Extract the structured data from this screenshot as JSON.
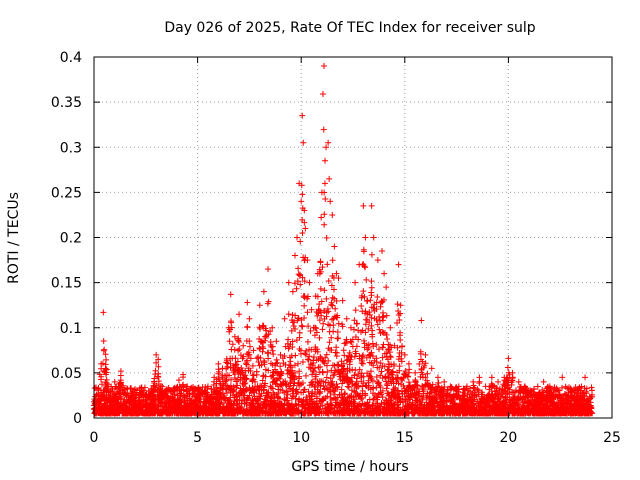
{
  "chart_data": {
    "type": "scatter",
    "title": "Day 026 of 2025, Rate Of TEC Index for receiver sulp",
    "xlabel": "GPS time / hours",
    "ylabel": "ROTI / TECUs",
    "xlim": [
      0,
      25
    ],
    "ylim": [
      0,
      0.4
    ],
    "x_ticks": [
      "0",
      "5",
      "10",
      "15",
      "20",
      "25"
    ],
    "y_ticks": [
      "0",
      "0.05",
      "0.1",
      "0.15",
      "0.2",
      "0.25",
      "0.3",
      "0.35",
      "0.4"
    ],
    "grid": true,
    "marker": "+",
    "color": "#ff0000",
    "series": [
      {
        "points": [
          [
            0.0,
            0.018
          ],
          [
            0.2,
            0.032
          ],
          [
            0.4,
            0.025
          ],
          [
            0.45,
            0.117
          ],
          [
            0.6,
            0.03
          ],
          [
            0.8,
            0.022
          ],
          [
            1.0,
            0.04
          ],
          [
            1.2,
            0.035
          ],
          [
            1.3,
            0.052
          ],
          [
            1.5,
            0.028
          ],
          [
            1.8,
            0.02
          ],
          [
            2.0,
            0.025
          ],
          [
            2.3,
            0.018
          ],
          [
            2.6,
            0.022
          ],
          [
            3.0,
            0.07
          ],
          [
            3.1,
            0.065
          ],
          [
            3.3,
            0.025
          ],
          [
            3.6,
            0.02
          ],
          [
            3.9,
            0.03
          ],
          [
            4.1,
            0.042
          ],
          [
            4.3,
            0.048
          ],
          [
            4.5,
            0.035
          ],
          [
            5.0,
            0.03
          ],
          [
            5.5,
            0.035
          ],
          [
            5.8,
            0.045
          ],
          [
            6.0,
            0.06
          ],
          [
            6.2,
            0.055
          ],
          [
            6.5,
            0.1
          ],
          [
            6.6,
            0.137
          ],
          [
            6.8,
            0.09
          ],
          [
            7.0,
            0.115
          ],
          [
            7.2,
            0.08
          ],
          [
            7.4,
            0.128
          ],
          [
            7.5,
            0.11
          ],
          [
            7.7,
            0.075
          ],
          [
            8.0,
            0.125
          ],
          [
            8.2,
            0.14
          ],
          [
            8.4,
            0.165
          ],
          [
            8.6,
            0.1
          ],
          [
            8.8,
            0.085
          ],
          [
            9.0,
            0.07
          ],
          [
            9.2,
            0.11
          ],
          [
            9.4,
            0.15
          ],
          [
            9.6,
            0.14
          ],
          [
            9.7,
            0.18
          ],
          [
            9.8,
            0.2
          ],
          [
            9.9,
            0.26
          ],
          [
            10.0,
            0.24
          ],
          [
            10.05,
            0.335
          ],
          [
            10.1,
            0.305
          ],
          [
            10.15,
            0.23
          ],
          [
            10.2,
            0.21
          ],
          [
            10.3,
            0.175
          ],
          [
            10.4,
            0.15
          ],
          [
            10.5,
            0.12
          ],
          [
            10.6,
            0.1
          ],
          [
            10.7,
            0.135
          ],
          [
            10.8,
            0.16
          ],
          [
            10.9,
            0.16
          ],
          [
            11.0,
            0.25
          ],
          [
            11.05,
            0.359
          ],
          [
            11.1,
            0.39
          ],
          [
            11.15,
            0.285
          ],
          [
            11.2,
            0.3
          ],
          [
            11.3,
            0.305
          ],
          [
            11.35,
            0.265
          ],
          [
            11.4,
            0.24
          ],
          [
            11.5,
            0.225
          ],
          [
            11.6,
            0.19
          ],
          [
            11.7,
            0.16
          ],
          [
            11.8,
            0.155
          ],
          [
            12.0,
            0.13
          ],
          [
            12.2,
            0.11
          ],
          [
            12.4,
            0.1
          ],
          [
            12.6,
            0.15
          ],
          [
            12.8,
            0.17
          ],
          [
            13.0,
            0.235
          ],
          [
            13.1,
            0.2
          ],
          [
            13.2,
            0.13
          ],
          [
            13.4,
            0.235
          ],
          [
            13.5,
            0.2
          ],
          [
            13.7,
            0.175
          ],
          [
            13.9,
            0.185
          ],
          [
            14.0,
            0.16
          ],
          [
            14.1,
            0.145
          ],
          [
            14.3,
            0.1
          ],
          [
            14.5,
            0.08
          ],
          [
            14.7,
            0.17
          ],
          [
            14.8,
            0.125
          ],
          [
            15.0,
            0.07
          ],
          [
            15.2,
            0.06
          ],
          [
            15.5,
            0.05
          ],
          [
            15.8,
            0.108
          ],
          [
            16.0,
            0.07
          ],
          [
            16.3,
            0.055
          ],
          [
            16.6,
            0.045
          ],
          [
            16.9,
            0.04
          ],
          [
            17.2,
            0.035
          ],
          [
            17.5,
            0.03
          ],
          [
            17.8,
            0.028
          ],
          [
            18.0,
            0.035
          ],
          [
            18.3,
            0.04
          ],
          [
            18.6,
            0.045
          ],
          [
            18.9,
            0.035
          ],
          [
            19.2,
            0.045
          ],
          [
            19.5,
            0.04
          ],
          [
            19.8,
            0.045
          ],
          [
            20.0,
            0.066
          ],
          [
            20.2,
            0.05
          ],
          [
            20.5,
            0.04
          ],
          [
            20.8,
            0.035
          ],
          [
            21.1,
            0.03
          ],
          [
            21.4,
            0.025
          ],
          [
            21.7,
            0.04
          ],
          [
            22.0,
            0.035
          ],
          [
            22.3,
            0.03
          ],
          [
            22.6,
            0.045
          ],
          [
            22.9,
            0.028
          ],
          [
            23.2,
            0.02
          ],
          [
            23.5,
            0.03
          ],
          [
            23.7,
            0.045
          ],
          [
            23.85,
            0.02
          ],
          [
            24.0,
            0.012
          ]
        ]
      }
    ]
  }
}
